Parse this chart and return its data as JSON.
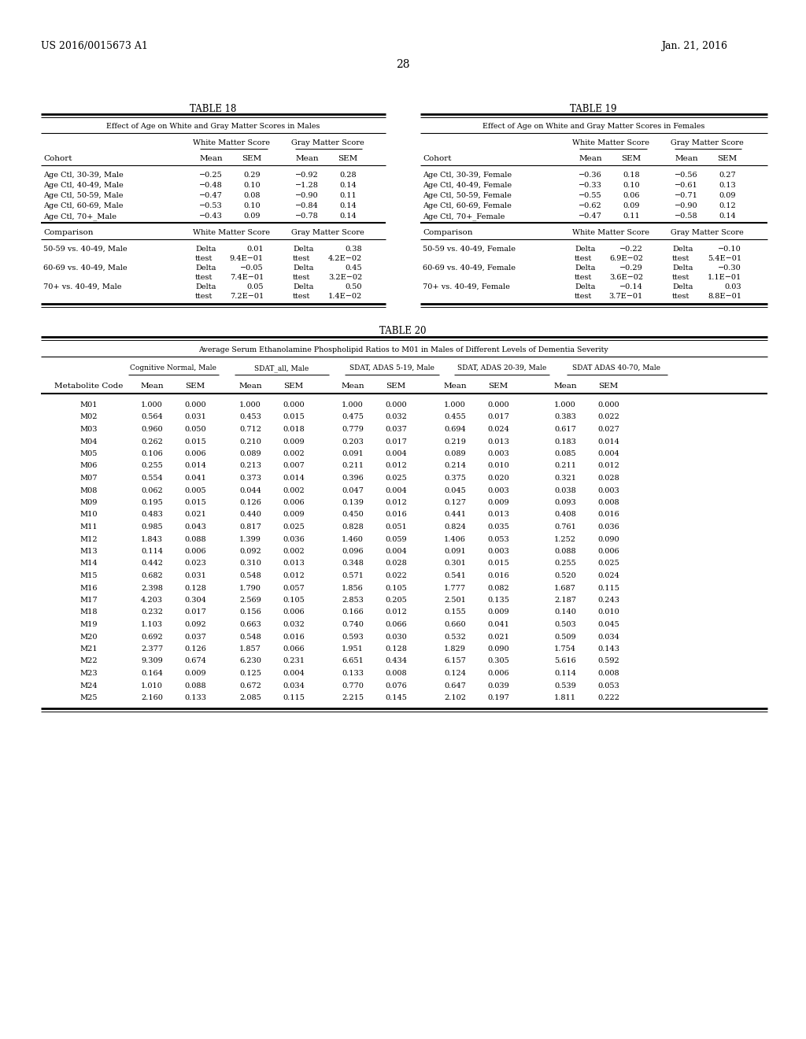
{
  "header_left": "US 2016/0015673 A1",
  "header_right": "Jan. 21, 2016",
  "page_number": "28",
  "table18_title": "TABLE 18",
  "table18_subtitle": "Effect of Age on White and Gray Matter Scores in Males",
  "table18_col_groups": [
    "White Matter Score",
    "Gray Matter Score"
  ],
  "table18_cohort_rows": [
    [
      "Age Ctl, 30-39, Male",
      "−0.25",
      "0.29",
      "−0.92",
      "0.28"
    ],
    [
      "Age Ctl, 40-49, Male",
      "−0.48",
      "0.10",
      "−1.28",
      "0.14"
    ],
    [
      "Age Ctl, 50-59, Male",
      "−0.47",
      "0.08",
      "−0.90",
      "0.11"
    ],
    [
      "Age Ctl, 60-69, Male",
      "−0.53",
      "0.10",
      "−0.84",
      "0.14"
    ],
    [
      "Age Ctl, 70+_Male",
      "−0.43",
      "0.09",
      "−0.78",
      "0.14"
    ]
  ],
  "table18_comparison_rows": [
    [
      "50-59 vs. 40-49, Male",
      "Delta",
      "0.01",
      "Delta",
      "0.38"
    ],
    [
      "",
      "ttest",
      "9.4E−01",
      "ttest",
      "4.2E−02"
    ],
    [
      "60-69 vs. 40-49, Male",
      "Delta",
      "−0.05",
      "Delta",
      "0.45"
    ],
    [
      "",
      "ttest",
      "7.4E−01",
      "ttest",
      "3.2E−02"
    ],
    [
      "70+ vs. 40-49, Male",
      "Delta",
      "0.05",
      "Delta",
      "0.50"
    ],
    [
      "",
      "ttest",
      "7.2E−01",
      "ttest",
      "1.4E−02"
    ]
  ],
  "table19_title": "TABLE 19",
  "table19_subtitle": "Effect of Age on White and Gray Matter Scores in Females",
  "table19_col_groups": [
    "White Matter Score",
    "Gray Matter Score"
  ],
  "table19_cohort_rows": [
    [
      "Age Ctl, 30-39, Female",
      "−0.36",
      "0.18",
      "−0.56",
      "0.27"
    ],
    [
      "Age Ctl, 40-49, Female",
      "−0.33",
      "0.10",
      "−0.61",
      "0.13"
    ],
    [
      "Age Ctl, 50-59, Female",
      "−0.55",
      "0.06",
      "−0.71",
      "0.09"
    ],
    [
      "Age Ctl, 60-69, Female",
      "−0.62",
      "0.09",
      "−0.90",
      "0.12"
    ],
    [
      "Age Ctl, 70+_Female",
      "−0.47",
      "0.11",
      "−0.58",
      "0.14"
    ]
  ],
  "table19_comparison_rows": [
    [
      "50-59 vs. 40-49, Female",
      "Delta",
      "−0.22",
      "Delta",
      "−0.10"
    ],
    [
      "",
      "ttest",
      "6.9E−02",
      "ttest",
      "5.4E−01"
    ],
    [
      "60-69 vs. 40-49, Female",
      "Delta",
      "−0.29",
      "Delta",
      "−0.30"
    ],
    [
      "",
      "ttest",
      "3.6E−02",
      "ttest",
      "1.1E−01"
    ],
    [
      "70+ vs. 40-49, Female",
      "Delta",
      "−0.14",
      "Delta",
      "0.03"
    ],
    [
      "",
      "ttest",
      "3.7E−01",
      "ttest",
      "8.8E−01"
    ]
  ],
  "table20_title": "TABLE 20",
  "table20_subtitle": "Average Serum Ethanolamine Phospholipid Ratios to M01 in Males of Different Levels of Dementia Severity",
  "table20_col_groups": [
    "Cognitive Normal, Male",
    "SDAT_all, Male",
    "SDAT, ADAS 5-19, Male",
    "SDAT, ADAS 20-39, Male",
    "SDAT ADAS 40-70, Male"
  ],
  "table20_rows": [
    [
      "M01",
      "1.000",
      "0.000",
      "1.000",
      "0.000",
      "1.000",
      "0.000",
      "1.000",
      "0.000",
      "1.000",
      "0.000"
    ],
    [
      "M02",
      "0.564",
      "0.031",
      "0.453",
      "0.015",
      "0.475",
      "0.032",
      "0.455",
      "0.017",
      "0.383",
      "0.022"
    ],
    [
      "M03",
      "0.960",
      "0.050",
      "0.712",
      "0.018",
      "0.779",
      "0.037",
      "0.694",
      "0.024",
      "0.617",
      "0.027"
    ],
    [
      "M04",
      "0.262",
      "0.015",
      "0.210",
      "0.009",
      "0.203",
      "0.017",
      "0.219",
      "0.013",
      "0.183",
      "0.014"
    ],
    [
      "M05",
      "0.106",
      "0.006",
      "0.089",
      "0.002",
      "0.091",
      "0.004",
      "0.089",
      "0.003",
      "0.085",
      "0.004"
    ],
    [
      "M06",
      "0.255",
      "0.014",
      "0.213",
      "0.007",
      "0.211",
      "0.012",
      "0.214",
      "0.010",
      "0.211",
      "0.012"
    ],
    [
      "M07",
      "0.554",
      "0.041",
      "0.373",
      "0.014",
      "0.396",
      "0.025",
      "0.375",
      "0.020",
      "0.321",
      "0.028"
    ],
    [
      "M08",
      "0.062",
      "0.005",
      "0.044",
      "0.002",
      "0.047",
      "0.004",
      "0.045",
      "0.003",
      "0.038",
      "0.003"
    ],
    [
      "M09",
      "0.195",
      "0.015",
      "0.126",
      "0.006",
      "0.139",
      "0.012",
      "0.127",
      "0.009",
      "0.093",
      "0.008"
    ],
    [
      "M10",
      "0.483",
      "0.021",
      "0.440",
      "0.009",
      "0.450",
      "0.016",
      "0.441",
      "0.013",
      "0.408",
      "0.016"
    ],
    [
      "M11",
      "0.985",
      "0.043",
      "0.817",
      "0.025",
      "0.828",
      "0.051",
      "0.824",
      "0.035",
      "0.761",
      "0.036"
    ],
    [
      "M12",
      "1.843",
      "0.088",
      "1.399",
      "0.036",
      "1.460",
      "0.059",
      "1.406",
      "0.053",
      "1.252",
      "0.090"
    ],
    [
      "M13",
      "0.114",
      "0.006",
      "0.092",
      "0.002",
      "0.096",
      "0.004",
      "0.091",
      "0.003",
      "0.088",
      "0.006"
    ],
    [
      "M14",
      "0.442",
      "0.023",
      "0.310",
      "0.013",
      "0.348",
      "0.028",
      "0.301",
      "0.015",
      "0.255",
      "0.025"
    ],
    [
      "M15",
      "0.682",
      "0.031",
      "0.548",
      "0.012",
      "0.571",
      "0.022",
      "0.541",
      "0.016",
      "0.520",
      "0.024"
    ],
    [
      "M16",
      "2.398",
      "0.128",
      "1.790",
      "0.057",
      "1.856",
      "0.105",
      "1.777",
      "0.082",
      "1.687",
      "0.115"
    ],
    [
      "M17",
      "4.203",
      "0.304",
      "2.569",
      "0.105",
      "2.853",
      "0.205",
      "2.501",
      "0.135",
      "2.187",
      "0.243"
    ],
    [
      "M18",
      "0.232",
      "0.017",
      "0.156",
      "0.006",
      "0.166",
      "0.012",
      "0.155",
      "0.009",
      "0.140",
      "0.010"
    ],
    [
      "M19",
      "1.103",
      "0.092",
      "0.663",
      "0.032",
      "0.740",
      "0.066",
      "0.660",
      "0.041",
      "0.503",
      "0.045"
    ],
    [
      "M20",
      "0.692",
      "0.037",
      "0.548",
      "0.016",
      "0.593",
      "0.030",
      "0.532",
      "0.021",
      "0.509",
      "0.034"
    ],
    [
      "M21",
      "2.377",
      "0.126",
      "1.857",
      "0.066",
      "1.951",
      "0.128",
      "1.829",
      "0.090",
      "1.754",
      "0.143"
    ],
    [
      "M22",
      "9.309",
      "0.674",
      "6.230",
      "0.231",
      "6.651",
      "0.434",
      "6.157",
      "0.305",
      "5.616",
      "0.592"
    ],
    [
      "M23",
      "0.164",
      "0.009",
      "0.125",
      "0.004",
      "0.133",
      "0.008",
      "0.124",
      "0.006",
      "0.114",
      "0.008"
    ],
    [
      "M24",
      "1.010",
      "0.088",
      "0.672",
      "0.034",
      "0.770",
      "0.076",
      "0.647",
      "0.039",
      "0.539",
      "0.053"
    ],
    [
      "M25",
      "2.160",
      "0.133",
      "2.085",
      "0.115",
      "2.215",
      "0.145",
      "2.102",
      "0.197",
      "1.811",
      "0.222"
    ]
  ]
}
